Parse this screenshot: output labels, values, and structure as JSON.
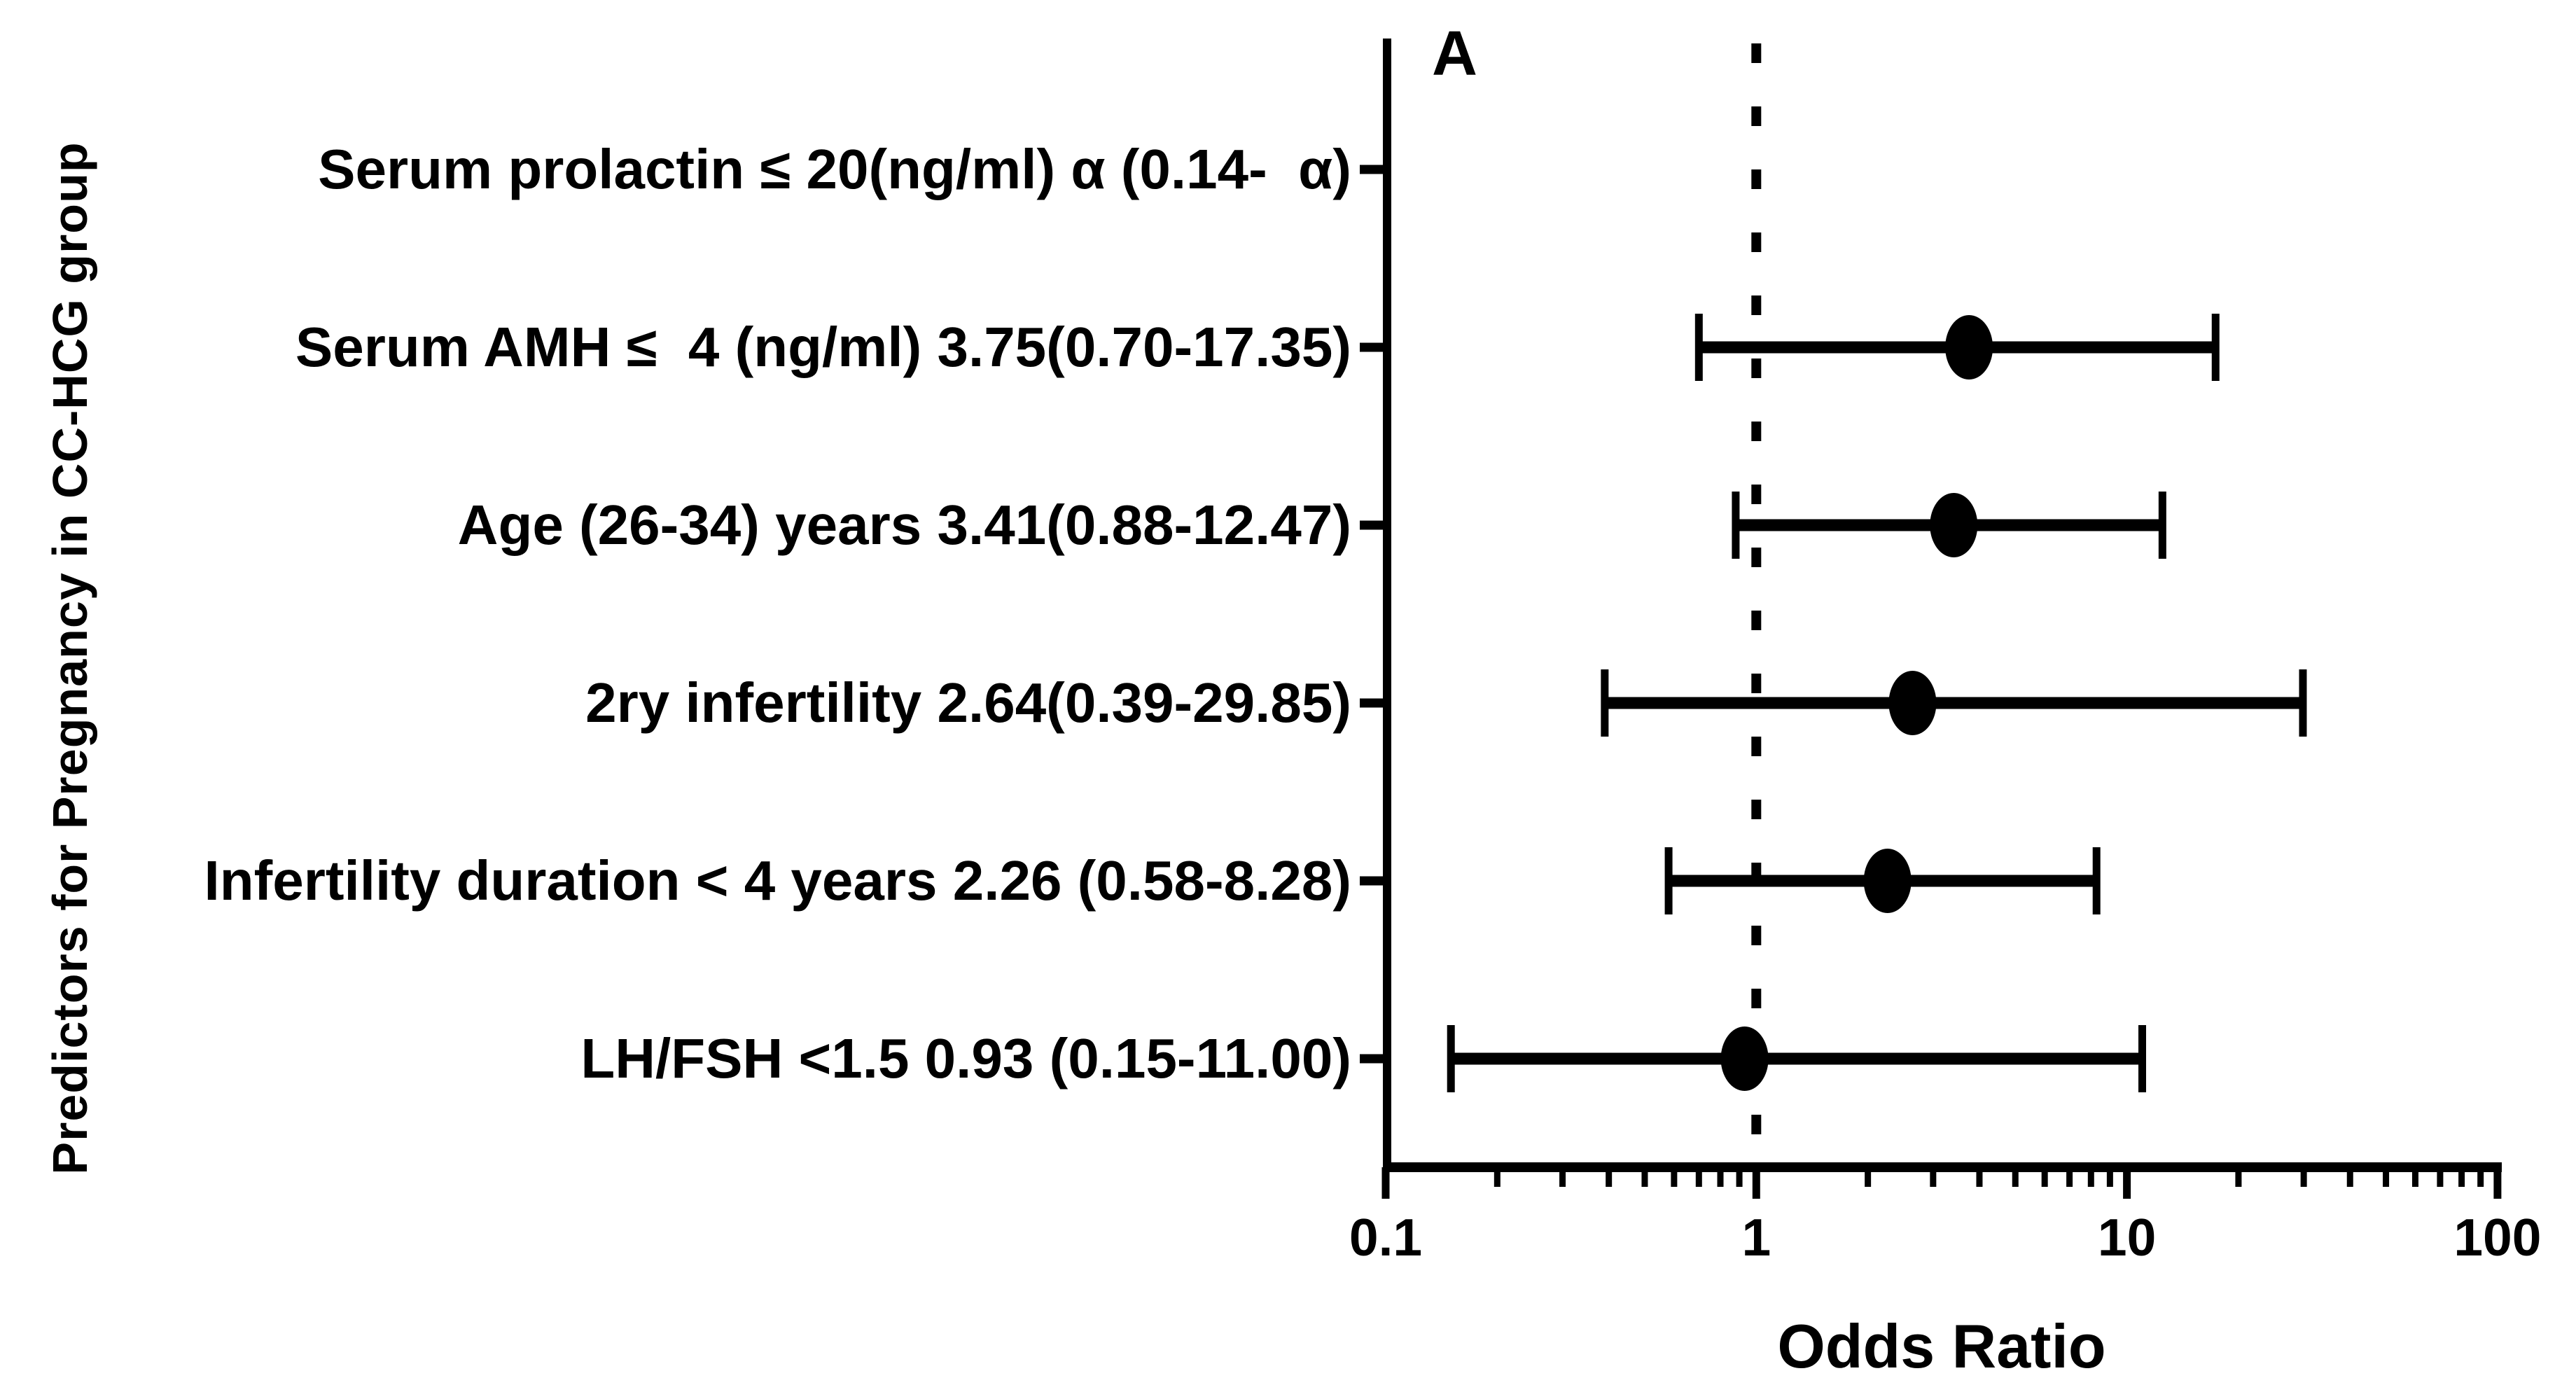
{
  "figure": {
    "panel_label": "A",
    "background_color": "#ffffff",
    "foreground_color": "#000000"
  },
  "chart_data": {
    "type": "scatter",
    "subtype": "forest-plot-odds-ratio",
    "title": "",
    "xlabel": "Odds Ratio",
    "ylabel": "Predictors for Pregnancy in CC-HCG group",
    "x_scale": "log10",
    "xlim": [
      0.1,
      100
    ],
    "x_major_ticks": [
      0.1,
      1,
      10,
      100
    ],
    "x_tick_labels": [
      "0.1",
      "1",
      "10",
      "100"
    ],
    "minor_ticks": "log decades 2-9 between majors",
    "grid": false,
    "legend": null,
    "reference_line_x": 1,
    "reference_line_style": "dotted",
    "marker": {
      "shape": "ellipse",
      "color": "#000000"
    },
    "rows": [
      {
        "label": "Serum prolactin ≤ 20(ng/ml) α (0.14-  α)",
        "odds_ratio": null,
        "ci_low": null,
        "ci_high": null,
        "estimable": false
      },
      {
        "label": "Serum AMH ≤  4 (ng/ml) 3.75(0.70-17.35)",
        "odds_ratio": 3.75,
        "ci_low": 0.7,
        "ci_high": 17.35,
        "estimable": true
      },
      {
        "label": "Age (26-34) years 3.41(0.88-12.47)",
        "odds_ratio": 3.41,
        "ci_low": 0.88,
        "ci_high": 12.47,
        "estimable": true
      },
      {
        "label": "2ry infertility 2.64(0.39-29.85)",
        "odds_ratio": 2.64,
        "ci_low": 0.39,
        "ci_high": 29.85,
        "estimable": true
      },
      {
        "label": "Infertility duration < 4 years 2.26 (0.58-8.28)",
        "odds_ratio": 2.26,
        "ci_low": 0.58,
        "ci_high": 8.28,
        "estimable": true
      },
      {
        "label": "LH/FSH <1.5 0.93 (0.15-11.00)",
        "odds_ratio": 0.93,
        "ci_low": 0.15,
        "ci_high": 11.0,
        "estimable": true
      }
    ]
  }
}
